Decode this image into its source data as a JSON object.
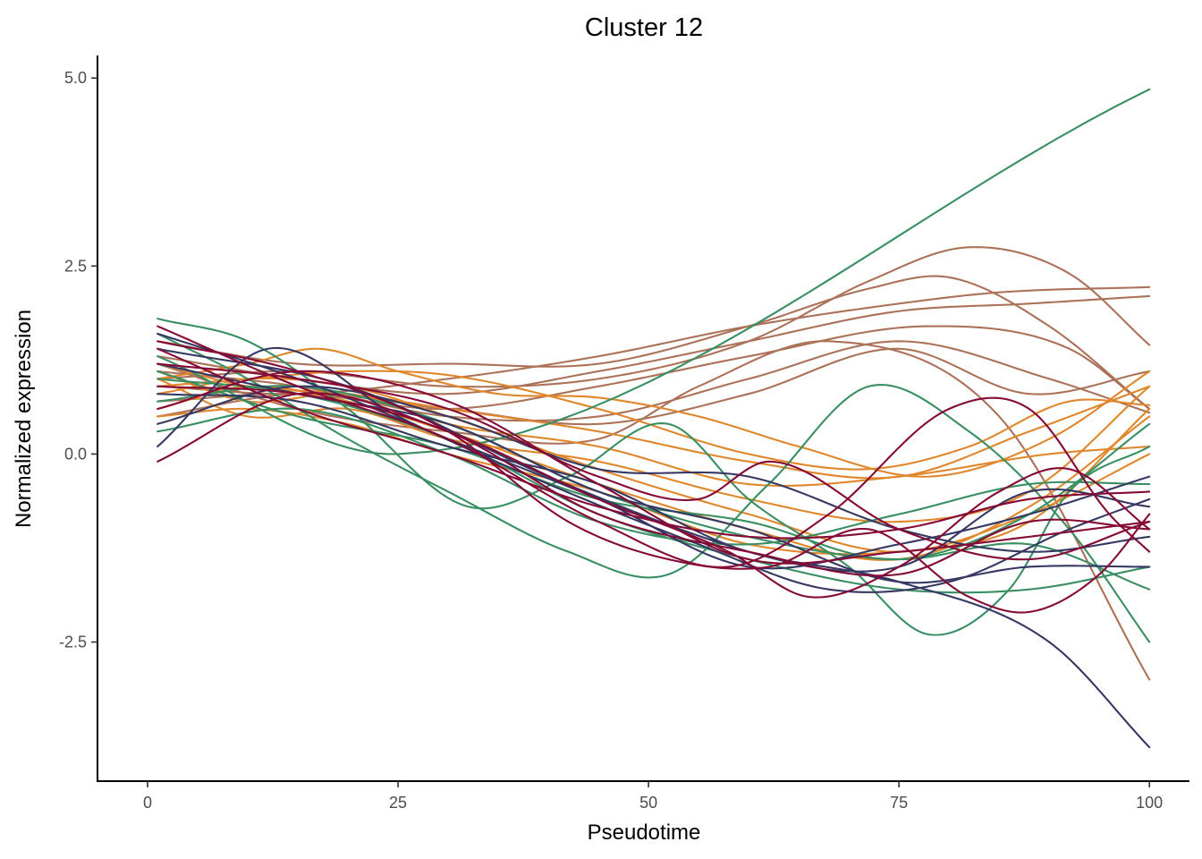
{
  "chart_data": {
    "type": "line",
    "title": "Cluster 12",
    "xlabel": "Pseudotime",
    "ylabel": "Normalized expression",
    "xlim": [
      -5,
      104
    ],
    "ylim": [
      -4.35,
      5.3
    ],
    "x_ticks": [
      0,
      25,
      50,
      75,
      100
    ],
    "x_tick_labels": [
      "0",
      "25",
      "50",
      "75",
      "100"
    ],
    "y_ticks": [
      -2.5,
      0,
      2.5,
      5
    ],
    "y_tick_labels": [
      "-2.5",
      "0.0",
      "2.5",
      "5.0"
    ],
    "grid": false,
    "legend": "none",
    "colors": {
      "green": "#3a8f62",
      "navy": "#363863",
      "maroon": "#850a36",
      "orange": "#e0872c",
      "brown": "#ac7259"
    },
    "series": [
      {
        "color": "brown",
        "x": [
          1,
          15,
          30,
          45,
          60,
          72,
          82,
          92,
          100
        ],
        "y": [
          1.0,
          1.1,
          0.9,
          1.0,
          1.5,
          2.3,
          2.75,
          2.4,
          1.45
        ]
      },
      {
        "color": "brown",
        "x": [
          1,
          15,
          30,
          45,
          60,
          72,
          80,
          90,
          100
        ],
        "y": [
          1.5,
          1.2,
          1.2,
          1.2,
          1.7,
          2.2,
          2.35,
          1.7,
          0.6
        ]
      },
      {
        "color": "brown",
        "x": [
          1,
          15,
          30,
          45,
          60,
          75,
          85,
          100
        ],
        "y": [
          0.9,
          0.8,
          1.0,
          1.3,
          1.7,
          2.0,
          2.15,
          2.22
        ]
      },
      {
        "color": "brown",
        "x": [
          1,
          15,
          30,
          45,
          60,
          75,
          88,
          100
        ],
        "y": [
          1.3,
          1.0,
          0.8,
          1.1,
          1.5,
          1.9,
          2.0,
          2.1
        ]
      },
      {
        "color": "brown",
        "x": [
          1,
          15,
          30,
          45,
          60,
          78,
          92,
          100
        ],
        "y": [
          0.7,
          0.8,
          0.6,
          0.9,
          1.3,
          1.7,
          1.4,
          0.6
        ]
      },
      {
        "color": "brown",
        "x": [
          1,
          15,
          30,
          45,
          60,
          75,
          90,
          100
        ],
        "y": [
          1.1,
          0.9,
          0.5,
          0.5,
          1.0,
          1.5,
          1.0,
          0.55
        ]
      },
      {
        "color": "brown",
        "x": [
          1,
          15,
          30,
          45,
          55,
          68,
          85,
          100
        ],
        "y": [
          1.2,
          0.6,
          0.3,
          0.2,
          0.9,
          1.5,
          0.5,
          -3.0
        ]
      },
      {
        "color": "brown",
        "x": [
          1,
          15,
          30,
          45,
          60,
          75,
          88,
          100
        ],
        "y": [
          0.5,
          0.8,
          0.6,
          0.4,
          0.8,
          1.4,
          0.8,
          1.1
        ]
      },
      {
        "color": "orange",
        "x": [
          1,
          10,
          17,
          25,
          35,
          45,
          55,
          65,
          78,
          90,
          100
        ],
        "y": [
          1.0,
          1.2,
          1.4,
          1.1,
          0.8,
          0.75,
          0.5,
          0.1,
          -0.3,
          0.2,
          1.1
        ]
      },
      {
        "color": "orange",
        "x": [
          1,
          10,
          20,
          30,
          45,
          60,
          72,
          82,
          92,
          100
        ],
        "y": [
          0.9,
          1.0,
          1.1,
          1.05,
          0.6,
          0.0,
          -0.2,
          0.1,
          0.7,
          0.65
        ]
      },
      {
        "color": "orange",
        "x": [
          1,
          10,
          20,
          30,
          45,
          60,
          75,
          88,
          100
        ],
        "y": [
          1.2,
          0.9,
          0.8,
          0.6,
          0.3,
          -0.1,
          -0.3,
          0.3,
          0.9
        ]
      },
      {
        "color": "orange",
        "x": [
          1,
          10,
          20,
          30,
          45,
          60,
          75,
          90,
          100
        ],
        "y": [
          1.1,
          0.7,
          0.8,
          0.4,
          0.1,
          -0.4,
          -0.3,
          0.0,
          0.1
        ]
      },
      {
        "color": "orange",
        "x": [
          1,
          10,
          20,
          30,
          45,
          60,
          75,
          88,
          100
        ],
        "y": [
          0.8,
          1.0,
          0.9,
          0.5,
          -0.2,
          -0.8,
          -1.3,
          -0.8,
          0.0
        ]
      },
      {
        "color": "orange",
        "x": [
          1,
          10,
          20,
          30,
          45,
          60,
          75,
          88,
          100
        ],
        "y": [
          0.6,
          0.9,
          0.7,
          0.3,
          -0.4,
          -1.0,
          -1.4,
          -0.7,
          0.5
        ]
      },
      {
        "color": "orange",
        "x": [
          1,
          10,
          20,
          30,
          45,
          60,
          75,
          88,
          100
        ],
        "y": [
          1.0,
          0.5,
          0.6,
          0.2,
          -0.1,
          -0.6,
          -0.9,
          -0.5,
          0.9
        ]
      },
      {
        "color": "orange",
        "x": [
          1,
          10,
          20,
          30,
          45,
          60,
          75,
          88,
          100
        ],
        "y": [
          0.5,
          0.6,
          0.4,
          0.0,
          -0.5,
          -1.2,
          -1.3,
          -0.9,
          0.6
        ]
      },
      {
        "color": "green",
        "x": [
          1,
          25,
          100
        ],
        "y": [
          1.3,
          0.0,
          4.85
        ]
      },
      {
        "color": "green",
        "x": [
          1,
          10,
          20,
          32,
          42,
          52,
          60,
          70,
          78,
          86,
          92,
          100
        ],
        "y": [
          1.8,
          1.5,
          0.6,
          -0.7,
          -0.3,
          0.4,
          -0.6,
          -1.5,
          -2.4,
          -1.8,
          -0.5,
          0.1
        ]
      },
      {
        "color": "green",
        "x": [
          1,
          10,
          20,
          30,
          42,
          52,
          62,
          72,
          82,
          92,
          100
        ],
        "y": [
          1.6,
          1.0,
          0.2,
          -0.5,
          -1.3,
          -1.6,
          -0.4,
          0.9,
          0.3,
          -1.0,
          -2.5
        ]
      },
      {
        "color": "green",
        "x": [
          1,
          15,
          30,
          45,
          60,
          75,
          88,
          100
        ],
        "y": [
          1.0,
          0.8,
          0.2,
          -0.8,
          -1.4,
          -1.8,
          -1.8,
          -1.5
        ]
      },
      {
        "color": "green",
        "x": [
          1,
          15,
          30,
          45,
          60,
          75,
          88,
          100
        ],
        "y": [
          0.7,
          0.9,
          0.4,
          -0.5,
          -1.1,
          -1.4,
          -1.2,
          -1.8
        ]
      },
      {
        "color": "green",
        "x": [
          1,
          15,
          30,
          45,
          60,
          75,
          88,
          100
        ],
        "y": [
          0.3,
          0.6,
          0.0,
          -0.9,
          -1.2,
          -0.8,
          -0.4,
          -0.4
        ]
      },
      {
        "color": "green",
        "x": [
          1,
          15,
          30,
          45,
          60,
          75,
          88,
          100
        ],
        "y": [
          1.1,
          0.5,
          0.1,
          -0.6,
          -0.9,
          -1.4,
          -0.8,
          0.4
        ]
      },
      {
        "color": "navy",
        "x": [
          1,
          20,
          40,
          60,
          75,
          90,
          100
        ],
        "y": [
          1.4,
          0.9,
          -0.3,
          -1.3,
          -1.7,
          -2.5,
          -3.9
        ]
      },
      {
        "color": "navy",
        "x": [
          1,
          12,
          25,
          40,
          55,
          68,
          80,
          92,
          100
        ],
        "y": [
          0.1,
          1.4,
          0.5,
          -0.4,
          -1.2,
          -1.8,
          -1.7,
          -1.0,
          -0.6
        ]
      },
      {
        "color": "navy",
        "x": [
          1,
          15,
          30,
          45,
          60,
          75,
          88,
          100
        ],
        "y": [
          1.2,
          0.8,
          0.4,
          -0.5,
          -1.0,
          -1.7,
          -1.5,
          -1.5
        ]
      },
      {
        "color": "navy",
        "x": [
          1,
          15,
          30,
          45,
          60,
          75,
          88,
          100
        ],
        "y": [
          0.8,
          0.7,
          0.1,
          -0.4,
          -1.3,
          -1.5,
          -0.5,
          -0.7
        ]
      },
      {
        "color": "navy",
        "x": [
          1,
          15,
          30,
          45,
          60,
          75,
          88,
          100
        ],
        "y": [
          1.6,
          1.0,
          0.2,
          -0.6,
          -1.5,
          -1.2,
          -0.8,
          -0.3
        ]
      },
      {
        "color": "navy",
        "x": [
          1,
          15,
          30,
          45,
          60,
          75,
          88,
          100
        ],
        "y": [
          0.4,
          0.9,
          0.5,
          -0.2,
          -0.3,
          -1.0,
          -1.3,
          -1.1
        ]
      },
      {
        "color": "maroon",
        "x": [
          1,
          15,
          30,
          45,
          58,
          68,
          80,
          88,
          96,
          100
        ],
        "y": [
          1.7,
          0.9,
          0.2,
          -0.9,
          -1.5,
          -0.8,
          0.6,
          0.6,
          -0.8,
          -1.3
        ]
      },
      {
        "color": "maroon",
        "x": [
          1,
          15,
          30,
          42,
          52,
          62,
          72,
          82,
          88,
          95,
          100
        ],
        "y": [
          1.5,
          1.1,
          0.3,
          -0.9,
          -1.4,
          -1.5,
          -1.0,
          -1.9,
          -2.1,
          -1.6,
          -0.8
        ]
      },
      {
        "color": "maroon",
        "x": [
          1,
          15,
          30,
          45,
          58,
          66,
          75,
          85,
          92,
          100
        ],
        "y": [
          -0.1,
          0.8,
          0.3,
          -0.6,
          -1.3,
          -1.9,
          -1.5,
          -0.5,
          -0.2,
          -1.0
        ]
      },
      {
        "color": "maroon",
        "x": [
          1,
          15,
          30,
          45,
          55,
          62,
          75,
          88,
          100
        ],
        "y": [
          1.2,
          1.0,
          0.6,
          -0.3,
          -0.6,
          -0.1,
          -1.0,
          -1.4,
          -0.9
        ]
      },
      {
        "color": "maroon",
        "x": [
          1,
          15,
          30,
          45,
          60,
          75,
          88,
          100
        ],
        "y": [
          0.9,
          0.8,
          0.3,
          -0.8,
          -1.3,
          -1.6,
          -0.9,
          -1.0
        ]
      },
      {
        "color": "maroon",
        "x": [
          1,
          15,
          30,
          45,
          60,
          75,
          88,
          100
        ],
        "y": [
          1.4,
          0.6,
          0.0,
          -0.7,
          -1.1,
          -1.0,
          -0.6,
          -0.5
        ]
      },
      {
        "color": "maroon",
        "x": [
          1,
          15,
          30,
          45,
          60,
          75,
          88,
          100
        ],
        "y": [
          0.6,
          1.1,
          0.7,
          -0.4,
          -1.4,
          -1.3,
          -1.1,
          -0.9
        ]
      }
    ]
  }
}
